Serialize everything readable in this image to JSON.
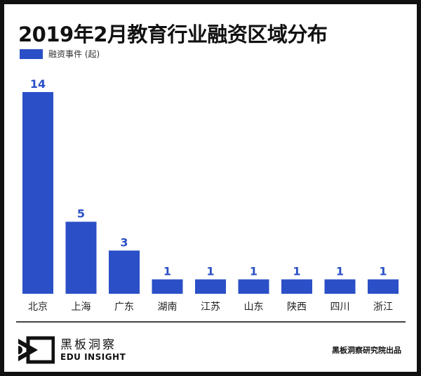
{
  "chart_data": {
    "type": "bar",
    "title": "2019年2月教育行业融资区域分布",
    "categories": [
      "北京",
      "上海",
      "广东",
      "湖南",
      "江苏",
      "山东",
      "陕西",
      "四川",
      "浙江"
    ],
    "series": [
      {
        "name": "融资事件 (起)",
        "values": [
          14,
          5,
          3,
          1,
          1,
          1,
          1,
          1,
          1
        ],
        "color": "#2b4fc7"
      }
    ],
    "data_labels": true,
    "ylim": [
      0,
      14
    ],
    "grid": false,
    "legend": "top-left"
  },
  "footer": {
    "logo_cn": "黑板洞察",
    "logo_en": "EDU INSIGHT",
    "credit": "黑板洞察研究院出品"
  }
}
